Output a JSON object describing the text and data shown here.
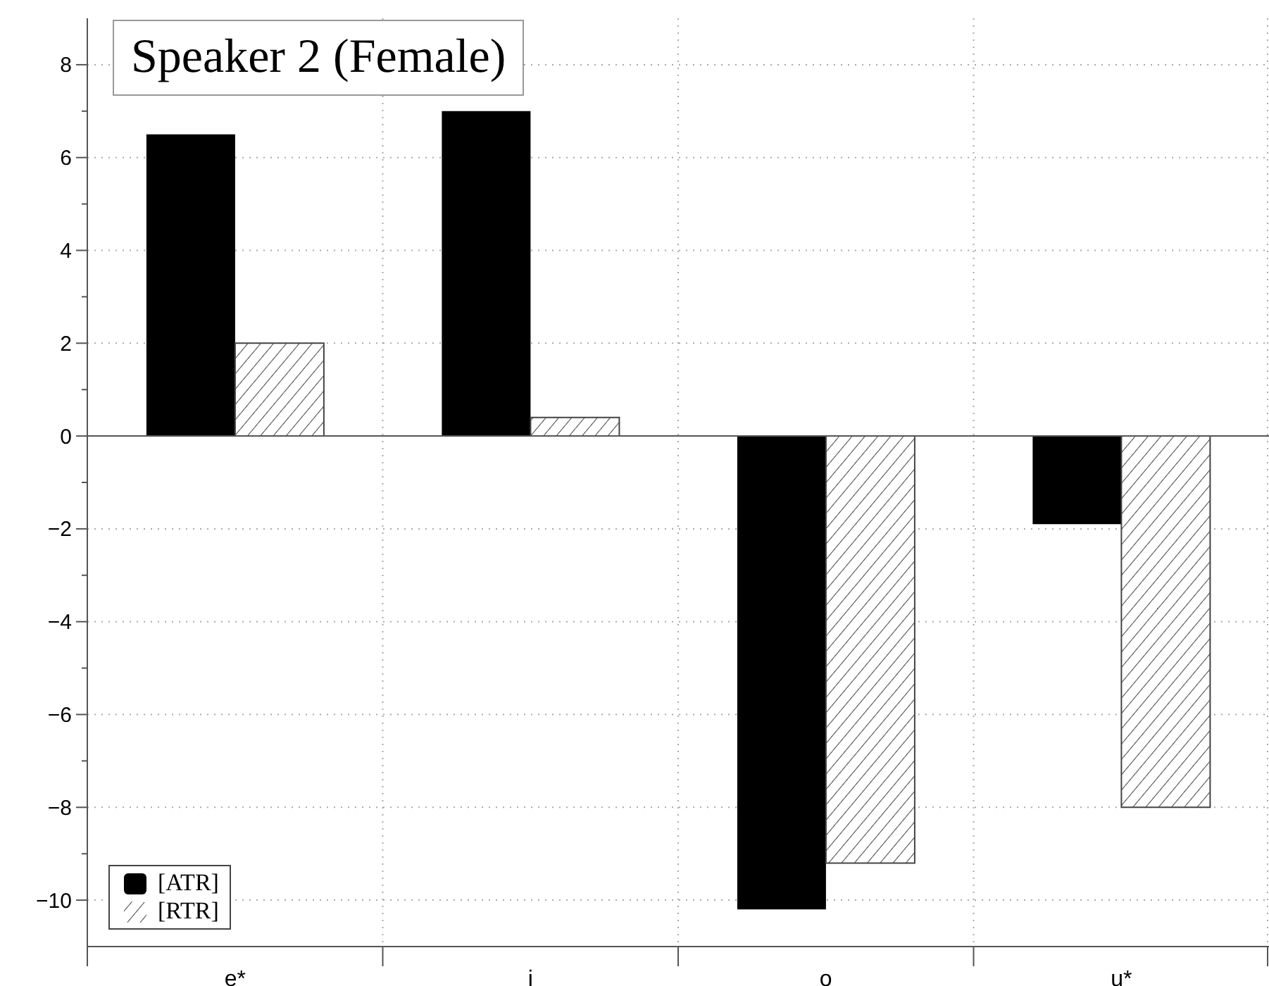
{
  "chart_data": {
    "type": "bar",
    "title": "Speaker 2 (Female)",
    "categories": [
      "e*",
      "i",
      "o",
      "u*"
    ],
    "series": [
      {
        "name": "[ATR]",
        "color": "#000000",
        "values": [
          6.5,
          7.0,
          -10.2,
          -1.9
        ]
      },
      {
        "name": "[RTR]",
        "color": "#444444",
        "values": [
          2.0,
          0.4,
          -9.2,
          -8.0
        ]
      }
    ],
    "ylim": [
      -11,
      9
    ],
    "yticks": [
      -10,
      {
        "value": -9,
        "label": null
      },
      -8,
      {
        "value": -7,
        "label": null
      },
      -6,
      {
        "value": -5,
        "label": null
      },
      -4,
      {
        "value": -3,
        "label": null
      },
      -2,
      {
        "value": -1,
        "label": null
      },
      0,
      {
        "value": 1,
        "label": null
      },
      2,
      {
        "value": 3,
        "label": null
      },
      4,
      {
        "value": 5,
        "label": null
      },
      6,
      {
        "value": 7,
        "label": null
      },
      8
    ],
    "ref_lines": [
      {
        "axis": "y",
        "value": 0
      }
    ],
    "grid": true,
    "legend": "bottom left"
  }
}
